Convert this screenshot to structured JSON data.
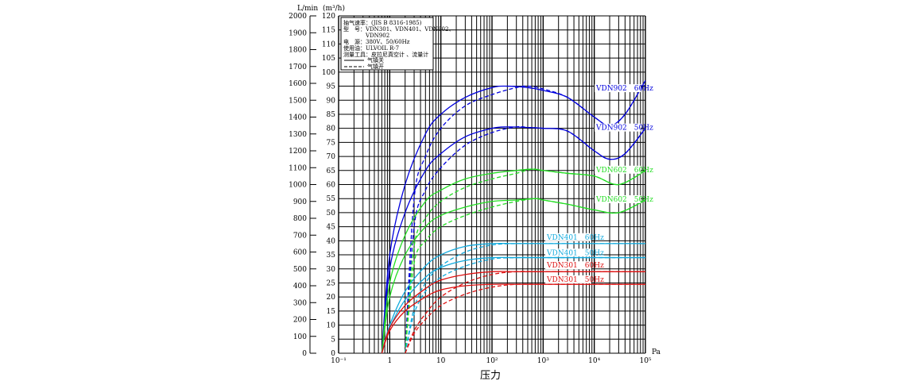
{
  "chart_data": {
    "type": "line",
    "title": "",
    "xlabel": "压力",
    "xunit": "Pa",
    "ylabel_left": "L/min",
    "ylabel_right": "(m³/h)",
    "xscale": "log",
    "xlim": [
      0.1,
      100000
    ],
    "ylim": [
      0,
      120
    ],
    "ylim_left": [
      0,
      2000
    ],
    "x_ticks": [
      "10⁻¹",
      "1",
      "10",
      "10²",
      "10³",
      "10⁴",
      "10⁵"
    ],
    "y_ticks": [
      0,
      5,
      10,
      15,
      20,
      25,
      30,
      35,
      40,
      45,
      50,
      55,
      60,
      65,
      70,
      75,
      80,
      85,
      90,
      95,
      100,
      105,
      110,
      115,
      120
    ],
    "y_ticks_left": [
      0,
      100,
      200,
      300,
      400,
      500,
      600,
      700,
      800,
      900,
      1000,
      1100,
      1200,
      1300,
      1400,
      1500,
      1600,
      1700,
      1800,
      1900,
      2000
    ],
    "grid": true,
    "legend": {
      "placement": "top-left",
      "lines": [
        "抽气速率：(JIS B 8316-1985)",
        "型　号：VDN301、VDN401、VDN602、",
        "　　　　VDN902",
        "电　源：380V、50/60Hz",
        "使用油：ULVOIL R-7",
        "测量工具：皮拉尼真空计 、流量计"
      ],
      "solid": "气镇关",
      "dashed": "气镇开"
    },
    "series": [
      {
        "name": "VDN902 60Hz",
        "color": "#0000dd",
        "label": "VDN902　60Hz",
        "solid": {
          "x": [
            0.7,
            1,
            2,
            5,
            10,
            30,
            100,
            200,
            500,
            1000,
            3000,
            10000,
            20000,
            40000,
            100000
          ],
          "y": [
            0,
            35,
            60,
            78,
            85,
            91,
            94.5,
            95,
            94.5,
            93.5,
            91,
            84,
            81,
            85,
            97
          ]
        },
        "dashed": {
          "x": [
            2,
            3,
            5,
            10,
            30,
            100,
            300,
            500,
            1000,
            3000,
            10000,
            20000,
            40000,
            100000
          ],
          "y": [
            0,
            55,
            70,
            80,
            88,
            92,
            94.5,
            95,
            94,
            91,
            84,
            81,
            85,
            97
          ]
        }
      },
      {
        "name": "VDN902 50Hz",
        "color": "#0000dd",
        "label": "VDN902　50Hz",
        "solid": {
          "x": [
            0.7,
            1,
            2,
            5,
            10,
            30,
            100,
            200,
            500,
            1000,
            3000,
            10000,
            20000,
            40000,
            100000
          ],
          "y": [
            0,
            30,
            50,
            65,
            71,
            77,
            80,
            80.5,
            80.3,
            80,
            79,
            72,
            69,
            71,
            80
          ]
        },
        "dashed": {
          "x": [
            2,
            3,
            5,
            10,
            30,
            100,
            300,
            500,
            1000,
            3000,
            10000,
            20000,
            40000,
            100000
          ],
          "y": [
            0,
            45,
            58,
            66,
            74,
            78.5,
            80.5,
            80.3,
            80,
            79,
            72,
            69,
            71,
            80
          ]
        }
      },
      {
        "name": "VDN602 60Hz",
        "color": "#22dd22",
        "label": "VDN602　60Hz",
        "solid": {
          "x": [
            0.7,
            1,
            2,
            5,
            10,
            30,
            100,
            300,
            600,
            1000,
            3000,
            10000,
            30000,
            100000
          ],
          "y": [
            0,
            25,
            42,
            54,
            58,
            62,
            64,
            65,
            65.5,
            65,
            64,
            63,
            60,
            65
          ]
        },
        "dashed": {
          "x": [
            2,
            3,
            5,
            10,
            30,
            100,
            300,
            600,
            1000,
            3000,
            10000,
            30000,
            100000
          ],
          "y": [
            0,
            38,
            48,
            54,
            59,
            62,
            64,
            65.5,
            65,
            64,
            63,
            60,
            65
          ]
        }
      },
      {
        "name": "VDN602 50Hz",
        "color": "#22dd22",
        "label": "VDN602　50Hz",
        "solid": {
          "x": [
            0.7,
            1,
            2,
            5,
            10,
            30,
            100,
            300,
            700,
            1000,
            3000,
            10000,
            30000,
            100000
          ],
          "y": [
            0,
            20,
            35,
            45,
            49,
            52,
            54,
            54.5,
            55,
            54.5,
            53,
            51,
            50,
            54.5
          ]
        },
        "dashed": {
          "x": [
            2,
            3,
            5,
            10,
            30,
            100,
            300,
            700,
            1000,
            3000,
            10000,
            30000,
            100000
          ],
          "y": [
            0,
            32,
            40,
            45,
            49,
            52,
            54,
            55,
            54.5,
            53,
            51,
            50,
            54.5
          ]
        }
      },
      {
        "name": "VDN401 60Hz",
        "color": "#11aadd",
        "label": "VDN401　60Hz",
        "solid": {
          "x": [
            0.7,
            1,
            2,
            5,
            10,
            30,
            100,
            300,
            1000,
            10000,
            100000
          ],
          "y": [
            0,
            10,
            22,
            31,
            35,
            38,
            39,
            39,
            39,
            39,
            39
          ]
        },
        "dashed": {
          "x": [
            2,
            3,
            5,
            10,
            30,
            100,
            300,
            1000,
            10000,
            100000
          ],
          "y": [
            0,
            16,
            25,
            31,
            36,
            38.5,
            39,
            39,
            39,
            39
          ]
        }
      },
      {
        "name": "VDN401 50Hz",
        "color": "#11aadd",
        "label": "VDN401　50Hz",
        "solid": {
          "x": [
            0.7,
            1,
            2,
            5,
            10,
            30,
            100,
            300,
            1000,
            10000,
            100000
          ],
          "y": [
            0,
            9,
            19,
            27,
            30.5,
            33,
            34,
            34,
            34,
            34,
            34
          ]
        },
        "dashed": {
          "x": [
            2,
            3,
            5,
            10,
            30,
            100,
            300,
            1000,
            10000,
            100000
          ],
          "y": [
            0,
            14,
            22,
            27,
            31,
            33.5,
            34,
            34,
            34,
            34
          ]
        }
      },
      {
        "name": "VDN301 60Hz",
        "color": "#dd1111",
        "label": "VDN301　60Hz",
        "solid": {
          "x": [
            0.7,
            1,
            2,
            5,
            10,
            30,
            100,
            300,
            1000,
            10000,
            100000
          ],
          "y": [
            0,
            9,
            17,
            23,
            26,
            28,
            29,
            29,
            29,
            29,
            29
          ]
        },
        "dashed": {
          "x": [
            2,
            3,
            5,
            10,
            30,
            100,
            300,
            1000,
            10000,
            100000
          ],
          "y": [
            0,
            8,
            14,
            20,
            25,
            28,
            29,
            29,
            29,
            29
          ]
        }
      },
      {
        "name": "VDN301 50Hz",
        "color": "#dd1111",
        "label": "VDN301　50Hz",
        "solid": {
          "x": [
            0.7,
            1,
            2,
            5,
            10,
            30,
            100,
            300,
            1000,
            10000,
            100000
          ],
          "y": [
            0,
            8,
            15,
            20,
            22.5,
            24,
            24.5,
            24.5,
            24.5,
            24.5,
            24.5
          ]
        },
        "dashed": {
          "x": [
            2,
            3,
            5,
            10,
            30,
            100,
            300,
            1000,
            10000,
            100000
          ],
          "y": [
            0,
            7,
            12,
            17,
            21,
            23.5,
            24.5,
            24.5,
            24.5,
            24.5
          ]
        }
      }
    ]
  }
}
